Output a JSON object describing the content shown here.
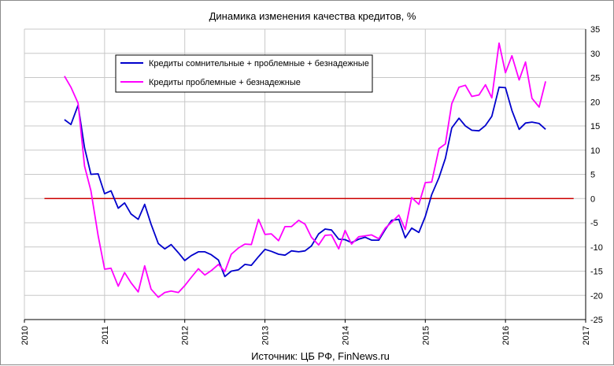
{
  "chart_data": {
    "type": "line",
    "title": "Динамика изменения качества кредитов, %",
    "source": "Источник: ЦБ РФ, FinNews.ru",
    "xlabel": "",
    "ylabel": "",
    "xlim": [
      2010,
      2017
    ],
    "ylim": [
      -25,
      35
    ],
    "x_ticks": [
      "2010",
      "2011",
      "2012",
      "2013",
      "2014",
      "2015",
      "2016",
      "2017"
    ],
    "y_ticks": [
      "35",
      "30",
      "25",
      "20",
      "15",
      "10",
      "5",
      "0",
      "-5",
      "-10",
      "-15",
      "-20",
      "-25"
    ],
    "grid": true,
    "y_axis_side": "right",
    "reference_line": {
      "y": 0,
      "color": "#cc0000"
    },
    "legend_placement": "top-left",
    "series": [
      {
        "name": "Кредиты сомнительные + проблемные + безнадежные",
        "color": "#0000cc",
        "x": [
          2010.5,
          2010.58,
          2010.67,
          2010.75,
          2010.83,
          2010.92,
          2011.0,
          2011.08,
          2011.17,
          2011.25,
          2011.33,
          2011.42,
          2011.5,
          2011.58,
          2011.67,
          2011.75,
          2011.83,
          2011.92,
          2012.0,
          2012.08,
          2012.17,
          2012.25,
          2012.33,
          2012.42,
          2012.5,
          2012.58,
          2012.67,
          2012.75,
          2012.83,
          2012.92,
          2013.0,
          2013.08,
          2013.17,
          2013.25,
          2013.33,
          2013.42,
          2013.5,
          2013.58,
          2013.67,
          2013.75,
          2013.83,
          2013.92,
          2014.0,
          2014.08,
          2014.17,
          2014.25,
          2014.33,
          2014.42,
          2014.5,
          2014.58,
          2014.67,
          2014.75,
          2014.83,
          2014.92,
          2015.0,
          2015.08,
          2015.17,
          2015.25,
          2015.33,
          2015.42,
          2015.5,
          2015.58,
          2015.67,
          2015.75,
          2015.83,
          2015.92,
          2016.0,
          2016.08,
          2016.17,
          2016.25,
          2016.33,
          2016.42,
          2016.5
        ],
        "values": [
          16.3,
          15.3,
          19.3,
          10.5,
          5.0,
          5.1,
          1.0,
          1.6,
          -2.0,
          -0.9,
          -3.2,
          -4.3,
          -1.2,
          -5.3,
          -9.3,
          -10.4,
          -9.5,
          -11.2,
          -12.8,
          -11.8,
          -11.0,
          -11.0,
          -11.6,
          -12.7,
          -16.1,
          -15.0,
          -14.7,
          -13.6,
          -13.8,
          -12.0,
          -10.5,
          -10.9,
          -11.5,
          -11.7,
          -10.8,
          -11.0,
          -10.8,
          -9.8,
          -7.3,
          -6.3,
          -6.5,
          -8.4,
          -8.5,
          -9.1,
          -8.4,
          -8.0,
          -8.6,
          -8.6,
          -6.4,
          -4.5,
          -4.3,
          -8.1,
          -6.1,
          -7.0,
          -3.7,
          0.8,
          4.3,
          8.3,
          14.6,
          16.6,
          15.0,
          14.1,
          14.0,
          15.1,
          17.0,
          23.0,
          22.9,
          18.2,
          14.3,
          15.6,
          15.8,
          15.5,
          14.3
        ]
      },
      {
        "name": "Кредиты проблемные + безнадежные",
        "color": "#ff00ff",
        "x": [
          2010.5,
          2010.58,
          2010.67,
          2010.75,
          2010.83,
          2010.92,
          2011.0,
          2011.08,
          2011.17,
          2011.25,
          2011.33,
          2011.42,
          2011.5,
          2011.58,
          2011.67,
          2011.75,
          2011.83,
          2011.92,
          2012.0,
          2012.08,
          2012.17,
          2012.25,
          2012.33,
          2012.42,
          2012.5,
          2012.58,
          2012.67,
          2012.75,
          2012.83,
          2012.92,
          2013.0,
          2013.08,
          2013.17,
          2013.25,
          2013.33,
          2013.42,
          2013.5,
          2013.58,
          2013.67,
          2013.75,
          2013.83,
          2013.92,
          2014.0,
          2014.08,
          2014.17,
          2014.25,
          2014.33,
          2014.42,
          2014.5,
          2014.58,
          2014.67,
          2014.75,
          2014.83,
          2014.92,
          2015.0,
          2015.08,
          2015.17,
          2015.25,
          2015.33,
          2015.42,
          2015.5,
          2015.58,
          2015.67,
          2015.75,
          2015.83,
          2015.92,
          2016.0,
          2016.08,
          2016.17,
          2016.25,
          2016.33,
          2016.42,
          2016.5
        ],
        "values": [
          25.3,
          23.0,
          19.7,
          6.7,
          1.6,
          -7.7,
          -14.6,
          -14.4,
          -18.1,
          -15.3,
          -17.4,
          -19.3,
          -13.9,
          -18.7,
          -20.4,
          -19.4,
          -19.1,
          -19.4,
          -18.0,
          -16.3,
          -14.5,
          -15.8,
          -14.9,
          -13.6,
          -15.1,
          -11.5,
          -10.2,
          -9.4,
          -9.5,
          -4.3,
          -7.4,
          -7.3,
          -8.7,
          -5.8,
          -5.8,
          -4.5,
          -5.3,
          -8.0,
          -9.6,
          -7.6,
          -7.5,
          -10.4,
          -6.6,
          -9.4,
          -7.9,
          -7.7,
          -7.5,
          -8.3,
          -6.1,
          -4.9,
          -3.4,
          -6.4,
          0.2,
          -1.2,
          3.3,
          3.4,
          10.3,
          11.3,
          19.6,
          23.0,
          23.4,
          21.1,
          21.4,
          23.5,
          20.8,
          32.1,
          26.0,
          29.5,
          24.5,
          28.2,
          20.7,
          18.9,
          24.2
        ]
      }
    ]
  }
}
